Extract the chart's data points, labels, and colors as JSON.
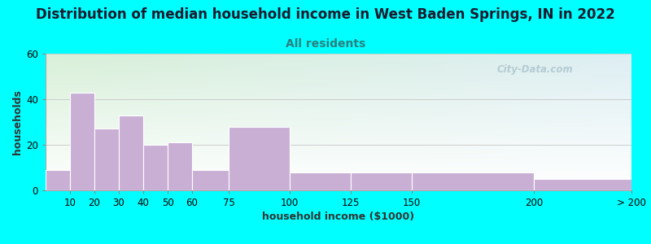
{
  "title": "Distribution of median household income in West Baden Springs, IN in 2022",
  "subtitle": "All residents",
  "xlabel": "household income ($1000)",
  "ylabel": "households",
  "background_outer": "#00FFFF",
  "background_inner_top": "#d8f0d8",
  "background_inner_right": "#e8f0f8",
  "background_inner_bottom": "#ffffff",
  "bar_color": "#c9afd4",
  "bar_edge_color": "#ffffff",
  "title_color": "#1a1a2e",
  "subtitle_color": "#2a8080",
  "ylabel_color": "#333333",
  "xlabel_color": "#333333",
  "watermark": "City-Data.com",
  "watermark_color": "#b0c8d0",
  "categories": [
    "10",
    "20",
    "30",
    "40",
    "50",
    "60",
    "75",
    "100",
    "125",
    "150",
    "200",
    "> 200"
  ],
  "values": [
    9,
    43,
    27,
    33,
    20,
    21,
    9,
    28,
    8,
    8,
    8,
    5
  ],
  "bin_lefts": [
    0,
    10,
    20,
    30,
    40,
    50,
    60,
    75,
    100,
    125,
    150,
    200
  ],
  "bin_rights": [
    10,
    20,
    30,
    40,
    50,
    60,
    75,
    100,
    125,
    150,
    200,
    240
  ],
  "ylim": [
    0,
    60
  ],
  "yticks": [
    0,
    20,
    40,
    60
  ],
  "xlim": [
    0,
    240
  ],
  "grid_color": "#cccccc",
  "title_fontsize": 12,
  "subtitle_fontsize": 10,
  "axis_label_fontsize": 9,
  "tick_fontsize": 8.5
}
